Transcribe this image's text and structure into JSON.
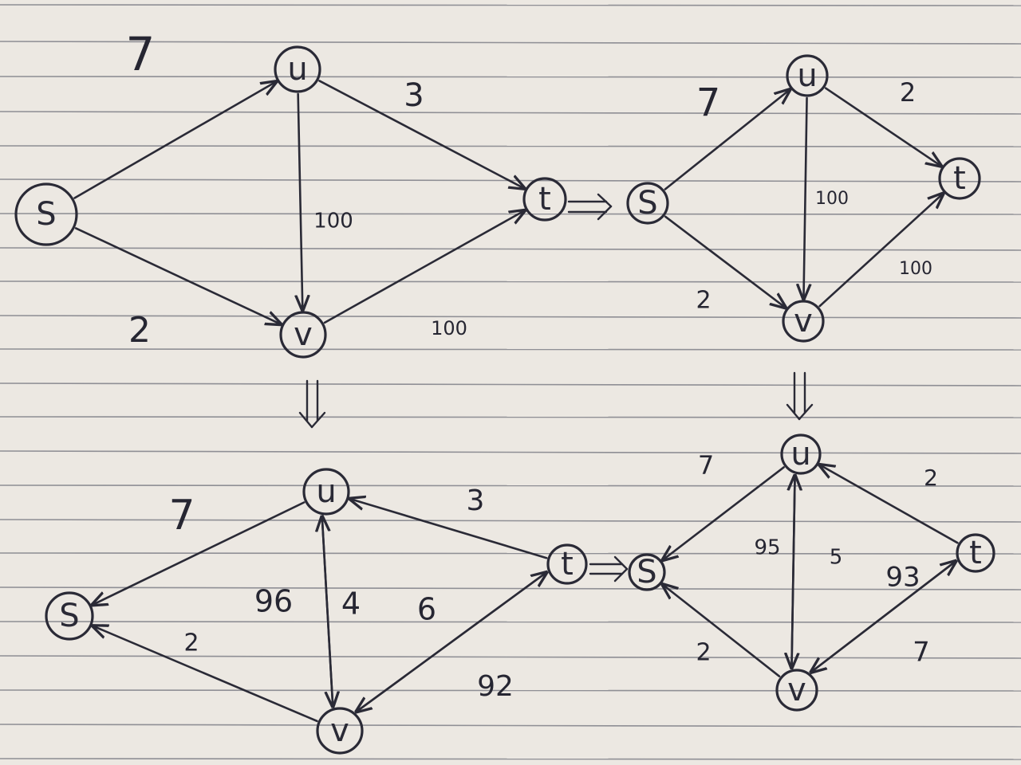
{
  "colors": {
    "paper": "#ece8e2",
    "rule": "#8f8f95",
    "ink": "#2a2a36"
  },
  "nodes": {
    "s": "S",
    "u": "u",
    "v": "v",
    "t": "t"
  },
  "panels": [
    {
      "id": "p1",
      "edges": [
        {
          "from": "s",
          "to": "u",
          "label": "7"
        },
        {
          "from": "u",
          "to": "t",
          "label": "3"
        },
        {
          "from": "u",
          "to": "v",
          "label": "100"
        },
        {
          "from": "s",
          "to": "v",
          "label": "2"
        },
        {
          "from": "v",
          "to": "t",
          "label": "100"
        }
      ]
    },
    {
      "id": "p2",
      "edges": [
        {
          "from": "s",
          "to": "u",
          "label": "7"
        },
        {
          "from": "u",
          "to": "t",
          "label": "2"
        },
        {
          "from": "u",
          "to": "v",
          "label": "100"
        },
        {
          "from": "s",
          "to": "v",
          "label": "2"
        },
        {
          "from": "v",
          "to": "t",
          "label": "100"
        }
      ]
    },
    {
      "id": "p3",
      "edges": [
        {
          "from": "u",
          "to": "s",
          "label": "7"
        },
        {
          "from": "t",
          "to": "u",
          "label": "3"
        },
        {
          "from": "u",
          "to": "v",
          "label": "96"
        },
        {
          "from": "v",
          "to": "u",
          "label": "4"
        },
        {
          "from": "v",
          "to": "s",
          "label": "2"
        },
        {
          "from": "t",
          "to": "v",
          "label": "6"
        },
        {
          "from": "v",
          "to": "t",
          "label": "92"
        }
      ]
    },
    {
      "id": "p4",
      "edges": [
        {
          "from": "u",
          "to": "s",
          "label": "7"
        },
        {
          "from": "t",
          "to": "u",
          "label": "2"
        },
        {
          "from": "u",
          "to": "v",
          "label": "95"
        },
        {
          "from": "v",
          "to": "u",
          "label": "5"
        },
        {
          "from": "v",
          "to": "s",
          "label": "2"
        },
        {
          "from": "t",
          "to": "v",
          "label": "7"
        },
        {
          "from": "v",
          "to": "t",
          "label": "93"
        }
      ]
    }
  ]
}
